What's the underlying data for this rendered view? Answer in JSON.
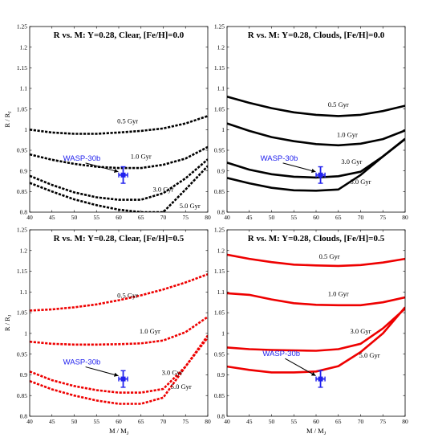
{
  "colors": {
    "black_series": "#000000",
    "red_series": "#ee0000",
    "wasp_marker": "#2222ee",
    "arrow": "#000000"
  },
  "chart_data": [
    {
      "type": "line",
      "title": "R vs. M: Y=0.28, Clear, [Fe/H]=0.0",
      "xlabel": "",
      "ylabel": "R / R_J",
      "xlim": [
        40,
        80
      ],
      "ylim": [
        0.8,
        1.25
      ],
      "xticks": [
        40,
        45,
        50,
        55,
        60,
        65,
        70,
        75,
        80
      ],
      "yticks": [
        0.8,
        0.85,
        0.9,
        0.95,
        1,
        1.05,
        1.1,
        1.15,
        1.2,
        1.25
      ],
      "grid": false,
      "line_style": "dotted",
      "color": "black",
      "series": [
        {
          "name": "0.5 Gyr",
          "points": [
            [
              40,
              1.0
            ],
            [
              45,
              0.993
            ],
            [
              50,
              0.99
            ],
            [
              55,
              0.99
            ],
            [
              60,
              0.993
            ],
            [
              65,
              0.997
            ],
            [
              70,
              1.003
            ],
            [
              75,
              1.015
            ],
            [
              80,
              1.033
            ]
          ]
        },
        {
          "name": "1.0 Gyr",
          "points": [
            [
              40,
              0.94
            ],
            [
              45,
              0.927
            ],
            [
              50,
              0.917
            ],
            [
              55,
              0.91
            ],
            [
              60,
              0.907
            ],
            [
              65,
              0.907
            ],
            [
              70,
              0.915
            ],
            [
              75,
              0.93
            ],
            [
              80,
              0.958
            ]
          ]
        },
        {
          "name": "3.0 Gyr",
          "points": [
            [
              40,
              0.888
            ],
            [
              45,
              0.866
            ],
            [
              50,
              0.848
            ],
            [
              55,
              0.836
            ],
            [
              60,
              0.83
            ],
            [
              65,
              0.83
            ],
            [
              70,
              0.846
            ],
            [
              75,
              0.882
            ],
            [
              80,
              0.928
            ]
          ]
        },
        {
          "name": "5.0 Gyr",
          "points": [
            [
              40,
              0.871
            ],
            [
              45,
              0.85
            ],
            [
              50,
              0.831
            ],
            [
              55,
              0.817
            ],
            [
              60,
              0.806
            ],
            [
              65,
              0.8
            ],
            [
              70,
              0.8
            ],
            [
              75,
              0.855
            ],
            [
              80,
              0.912
            ]
          ]
        }
      ],
      "labels": [
        {
          "text": "0.5 Gyr",
          "x": 62,
          "y": 1.015
        },
        {
          "text": "1.0 Gyr",
          "x": 65,
          "y": 0.93
        },
        {
          "text": "3.0 Gyr",
          "x": 70,
          "y": 0.85
        },
        {
          "text": "5.0 Gyr",
          "x": 76,
          "y": 0.81
        }
      ],
      "wasp": {
        "label": "WASP-30b",
        "label_x": 47.5,
        "label_y": 0.925,
        "mass": 61,
        "radius": 0.89,
        "mass_err": 1,
        "radius_err": 0.02
      }
    },
    {
      "type": "line",
      "title": "R vs. M: Y=0.28, Clouds, [Fe/H]=0.0",
      "xlabel": "",
      "ylabel": "",
      "xlim": [
        40,
        80
      ],
      "ylim": [
        0.8,
        1.25
      ],
      "xticks": [
        40,
        45,
        50,
        55,
        60,
        65,
        70,
        75,
        80
      ],
      "yticks": [
        0.8,
        0.85,
        0.9,
        0.95,
        1,
        1.05,
        1.1,
        1.15,
        1.2,
        1.25
      ],
      "grid": false,
      "line_style": "solid",
      "color": "black",
      "series": [
        {
          "name": "0.5 Gyr",
          "points": [
            [
              40,
              1.08
            ],
            [
              45,
              1.065
            ],
            [
              50,
              1.052
            ],
            [
              55,
              1.042
            ],
            [
              60,
              1.036
            ],
            [
              65,
              1.033
            ],
            [
              70,
              1.036
            ],
            [
              75,
              1.045
            ],
            [
              80,
              1.058
            ]
          ]
        },
        {
          "name": "1.0 Gyr",
          "points": [
            [
              40,
              1.015
            ],
            [
              45,
              0.997
            ],
            [
              50,
              0.982
            ],
            [
              55,
              0.972
            ],
            [
              60,
              0.965
            ],
            [
              65,
              0.962
            ],
            [
              70,
              0.966
            ],
            [
              75,
              0.977
            ],
            [
              80,
              0.998
            ]
          ]
        },
        {
          "name": "3.0 Gyr",
          "points": [
            [
              40,
              0.92
            ],
            [
              45,
              0.903
            ],
            [
              50,
              0.892
            ],
            [
              55,
              0.886
            ],
            [
              60,
              0.884
            ],
            [
              65,
              0.887
            ],
            [
              70,
              0.898
            ],
            [
              75,
              0.935
            ],
            [
              80,
              0.978
            ]
          ]
        },
        {
          "name": "5.0 Gyr",
          "points": [
            [
              40,
              0.883
            ],
            [
              45,
              0.87
            ],
            [
              50,
              0.859
            ],
            [
              55,
              0.853
            ],
            [
              60,
              0.852
            ],
            [
              65,
              0.855
            ],
            [
              70,
              0.89
            ],
            [
              75,
              0.935
            ],
            [
              80,
              0.977
            ]
          ]
        }
      ],
      "labels": [
        {
          "text": "0.5 Gyr",
          "x": 65,
          "y": 1.055
        },
        {
          "text": "1.0 Gyr",
          "x": 67,
          "y": 0.982
        },
        {
          "text": "3.0 Gyr",
          "x": 68,
          "y": 0.917
        },
        {
          "text": "5.0 Gyr",
          "x": 70,
          "y": 0.868
        }
      ],
      "wasp": {
        "label": "WASP-30b",
        "label_x": 47.5,
        "label_y": 0.925,
        "mass": 61,
        "radius": 0.89,
        "mass_err": 1,
        "radius_err": 0.02
      }
    },
    {
      "type": "line",
      "title": "R vs. M: Y=0.28, Clear, [Fe/H]=0.5",
      "xlabel": "M / M_J",
      "ylabel": "R / R_J",
      "xlim": [
        40,
        80
      ],
      "ylim": [
        0.8,
        1.25
      ],
      "xticks": [
        40,
        45,
        50,
        55,
        60,
        65,
        70,
        75,
        80
      ],
      "yticks": [
        0.8,
        0.85,
        0.9,
        0.95,
        1,
        1.05,
        1.1,
        1.15,
        1.2,
        1.25
      ],
      "grid": false,
      "line_style": "dotted",
      "color": "red",
      "series": [
        {
          "name": "0.5 Gyr",
          "points": [
            [
              40,
              1.055
            ],
            [
              45,
              1.058
            ],
            [
              50,
              1.063
            ],
            [
              55,
              1.07
            ],
            [
              60,
              1.08
            ],
            [
              65,
              1.092
            ],
            [
              70,
              1.106
            ],
            [
              75,
              1.123
            ],
            [
              80,
              1.143
            ]
          ]
        },
        {
          "name": "1.0 Gyr",
          "points": [
            [
              40,
              0.98
            ],
            [
              45,
              0.975
            ],
            [
              50,
              0.973
            ],
            [
              55,
              0.973
            ],
            [
              60,
              0.974
            ],
            [
              65,
              0.976
            ],
            [
              70,
              0.983
            ],
            [
              75,
              1.003
            ],
            [
              80,
              1.04
            ]
          ]
        },
        {
          "name": "3.0 Gyr",
          "points": [
            [
              40,
              0.908
            ],
            [
              45,
              0.887
            ],
            [
              50,
              0.873
            ],
            [
              55,
              0.863
            ],
            [
              60,
              0.857
            ],
            [
              65,
              0.857
            ],
            [
              70,
              0.866
            ],
            [
              75,
              0.92
            ],
            [
              80,
              0.995
            ]
          ]
        },
        {
          "name": "5.0 Gyr",
          "points": [
            [
              40,
              0.885
            ],
            [
              45,
              0.865
            ],
            [
              50,
              0.85
            ],
            [
              55,
              0.838
            ],
            [
              60,
              0.83
            ],
            [
              65,
              0.83
            ],
            [
              70,
              0.845
            ],
            [
              75,
              0.92
            ],
            [
              80,
              0.99
            ]
          ]
        }
      ],
      "labels": [
        {
          "text": "0.5 Gyr",
          "x": 62,
          "y": 1.086
        },
        {
          "text": "1.0 Gyr",
          "x": 67,
          "y": 1.0
        },
        {
          "text": "3.0 Gyr",
          "x": 72,
          "y": 0.9
        },
        {
          "text": "5.0 Gyr",
          "x": 74,
          "y": 0.866
        }
      ],
      "wasp": {
        "label": "WASP-30b",
        "label_x": 47.5,
        "label_y": 0.925,
        "mass": 61,
        "radius": 0.89,
        "mass_err": 1,
        "radius_err": 0.02
      }
    },
    {
      "type": "line",
      "title": "R vs. M: Y=0.28, Clouds, [Fe/H]=0.5",
      "xlabel": "M / M_J",
      "ylabel": "",
      "xlim": [
        40,
        80
      ],
      "ylim": [
        0.8,
        1.25
      ],
      "xticks": [
        40,
        45,
        50,
        55,
        60,
        65,
        70,
        75,
        80
      ],
      "yticks": [
        0.8,
        0.85,
        0.9,
        0.95,
        1,
        1.05,
        1.1,
        1.15,
        1.2,
        1.25
      ],
      "grid": false,
      "line_style": "solid",
      "color": "red",
      "series": [
        {
          "name": "0.5 Gyr",
          "points": [
            [
              40,
              1.19
            ],
            [
              45,
              1.18
            ],
            [
              50,
              1.172
            ],
            [
              55,
              1.166
            ],
            [
              60,
              1.164
            ],
            [
              65,
              1.163
            ],
            [
              70,
              1.165
            ],
            [
              75,
              1.171
            ],
            [
              80,
              1.18
            ]
          ]
        },
        {
          "name": "1.0 Gyr",
          "points": [
            [
              40,
              1.097
            ],
            [
              45,
              1.093
            ],
            [
              50,
              1.082
            ],
            [
              55,
              1.073
            ],
            [
              60,
              1.069
            ],
            [
              65,
              1.068
            ],
            [
              70,
              1.068
            ],
            [
              75,
              1.075
            ],
            [
              80,
              1.087
            ]
          ]
        },
        {
          "name": "3.0 Gyr",
          "points": [
            [
              40,
              0.966
            ],
            [
              45,
              0.962
            ],
            [
              50,
              0.96
            ],
            [
              55,
              0.959
            ],
            [
              60,
              0.958
            ],
            [
              65,
              0.962
            ],
            [
              70,
              0.975
            ],
            [
              75,
              1.012
            ],
            [
              80,
              1.06
            ]
          ]
        },
        {
          "name": "5.0 Gyr",
          "points": [
            [
              40,
              0.92
            ],
            [
              45,
              0.912
            ],
            [
              50,
              0.906
            ],
            [
              55,
              0.906
            ],
            [
              60,
              0.908
            ],
            [
              65,
              0.921
            ],
            [
              70,
              0.955
            ],
            [
              75,
              1.0
            ],
            [
              80,
              1.063
            ]
          ]
        }
      ],
      "labels": [
        {
          "text": "0.5 Gyr",
          "x": 63,
          "y": 1.18
        },
        {
          "text": "1.0 Gyr",
          "x": 65,
          "y": 1.09
        },
        {
          "text": "3.0 Gyr",
          "x": 70,
          "y": 1.0
        },
        {
          "text": "5.0 Gyr",
          "x": 72,
          "y": 0.942
        }
      ],
      "wasp": {
        "label": "WASP-30b",
        "label_x": 48,
        "label_y": 0.945,
        "mass": 61,
        "radius": 0.89,
        "mass_err": 1,
        "radius_err": 0.02
      }
    }
  ]
}
